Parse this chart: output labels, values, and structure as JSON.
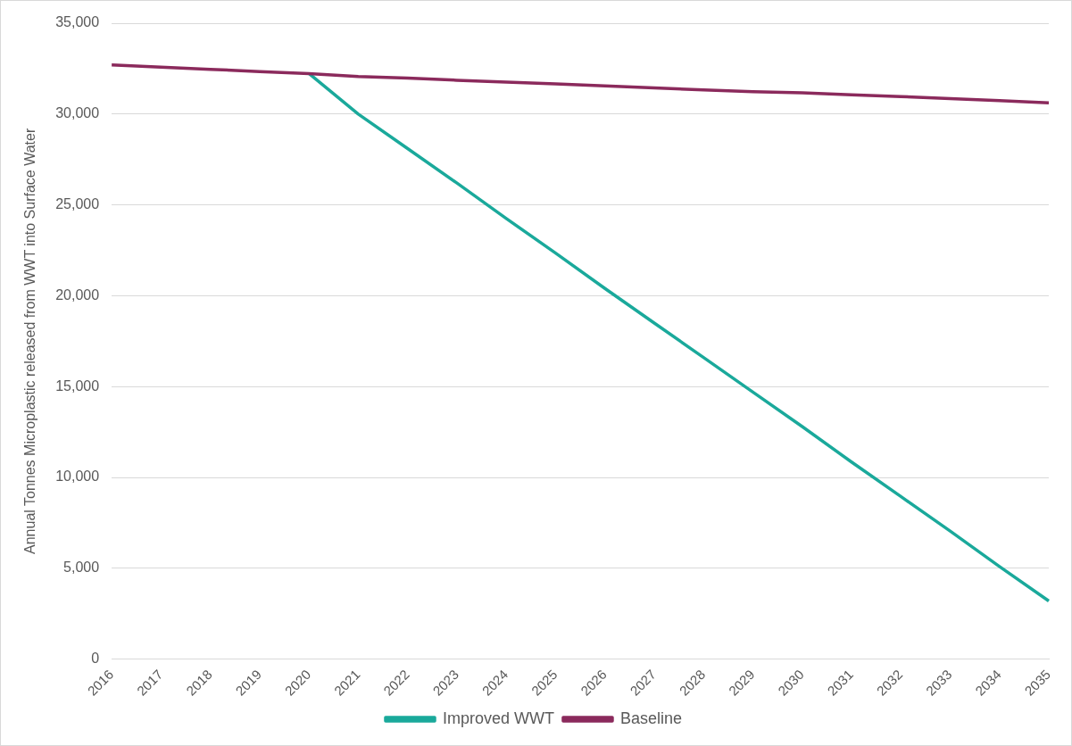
{
  "chart_data": {
    "type": "line",
    "ylabel": "Annual Tonnes Microplastic released from WWT into Surface Water",
    "categories": [
      "2016",
      "2017",
      "2018",
      "2019",
      "2020",
      "2021",
      "2022",
      "2023",
      "2024",
      "2025",
      "2026",
      "2027",
      "2028",
      "2029",
      "2030",
      "2031",
      "2032",
      "2033",
      "2034",
      "2035"
    ],
    "series": [
      {
        "name": "Improved WWT",
        "color": "#1aa99b",
        "values": [
          null,
          null,
          null,
          null,
          32230,
          30000,
          28100,
          26200,
          24250,
          22350,
          20400,
          18500,
          16600,
          14700,
          12800,
          10850,
          8950,
          7050,
          5100,
          3200
        ]
      },
      {
        "name": "Baseline",
        "color": "#8b2a5c",
        "values": [
          32700,
          32580,
          32460,
          32340,
          32230,
          32060,
          31980,
          31860,
          31760,
          31660,
          31550,
          31440,
          31330,
          31230,
          31170,
          31060,
          30960,
          30850,
          30740,
          30620
        ]
      }
    ],
    "ylim": [
      0,
      35000
    ],
    "yticks": [
      0,
      {
        "value": 5000,
        "label": "5,000"
      },
      {
        "value": 10000,
        "label": "10,000"
      },
      {
        "value": 15000,
        "label": "15,000"
      },
      {
        "value": 20000,
        "label": "20,000"
      },
      {
        "value": 25000,
        "label": "25,000"
      },
      {
        "value": 30000,
        "label": "30,000"
      },
      {
        "value": 35000,
        "label": "35,000"
      }
    ],
    "grid": "y",
    "legend": "bottom",
    "marker": "none",
    "line_style": "solid"
  }
}
